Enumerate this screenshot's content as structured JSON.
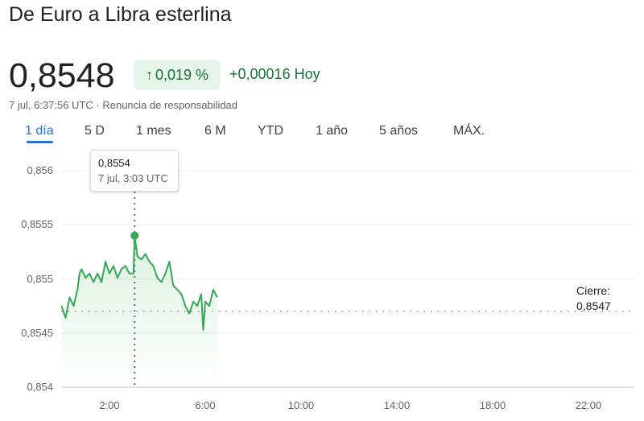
{
  "header": {
    "title": "De Euro a Libra esterlina",
    "price": "0,8548",
    "change_pct": "0,019 %",
    "change_abs": "+0,00016 Hoy",
    "timestamp": "7 jul, 6:37:56 UTC",
    "separator": " · ",
    "disclaimer": "Renuncia de responsabilidad",
    "up_color": "#137333",
    "badge_bg": "#e6f4ea"
  },
  "tabs": [
    {
      "label": "1 día",
      "active": true
    },
    {
      "label": "5 D"
    },
    {
      "label": "1 mes"
    },
    {
      "label": "6 M"
    },
    {
      "label": "YTD"
    },
    {
      "label": "1 año"
    },
    {
      "label": "5 años"
    },
    {
      "label": "MÁX."
    }
  ],
  "tooltip": {
    "value": "0,8554",
    "time": "7 jul, 3:03 UTC"
  },
  "close": {
    "label": "Cierre:",
    "value": "0,8547"
  },
  "chart_data": {
    "type": "area",
    "line_color": "#34a853",
    "y_ticks": [
      "0,856",
      "0,8555",
      "0,855",
      "0,8545",
      "0,854"
    ],
    "x_ticks": [
      "2:00",
      "6:00",
      "10:00",
      "14:00",
      "18:00",
      "22:00"
    ],
    "ylim": [
      0.854,
      0.856
    ],
    "xlim": [
      "0:00",
      "24:00"
    ],
    "grid": true,
    "previous_close": 0.8547,
    "highlight": {
      "x": "3:03",
      "y": 0.8554
    },
    "x": [
      "0:00",
      "0:10",
      "0:20",
      "0:30",
      "0:40",
      "0:45",
      "0:50",
      "1:00",
      "1:10",
      "1:20",
      "1:30",
      "1:40",
      "1:50",
      "2:00",
      "2:10",
      "2:20",
      "2:30",
      "2:40",
      "2:50",
      "3:00",
      "3:03",
      "3:10",
      "3:20",
      "3:30",
      "3:40",
      "3:50",
      "4:00",
      "4:10",
      "4:20",
      "4:30",
      "4:40",
      "4:50",
      "5:00",
      "5:10",
      "5:20",
      "5:30",
      "5:40",
      "5:50",
      "5:55",
      "6:00",
      "6:10",
      "6:20",
      "6:30"
    ],
    "y": [
      0.85475,
      0.85464,
      0.85483,
      0.85475,
      0.8549,
      0.85505,
      0.85509,
      0.85501,
      0.85505,
      0.85497,
      0.85505,
      0.85497,
      0.85516,
      0.85505,
      0.85512,
      0.85501,
      0.85509,
      0.85512,
      0.85505,
      0.85505,
      0.8554,
      0.85521,
      0.85518,
      0.85523,
      0.85516,
      0.85512,
      0.85501,
      0.85497,
      0.85505,
      0.85516,
      0.85494,
      0.8549,
      0.85486,
      0.85475,
      0.85468,
      0.85479,
      0.85475,
      0.85486,
      0.85453,
      0.85479,
      0.85475,
      0.8549,
      0.85483
    ]
  }
}
